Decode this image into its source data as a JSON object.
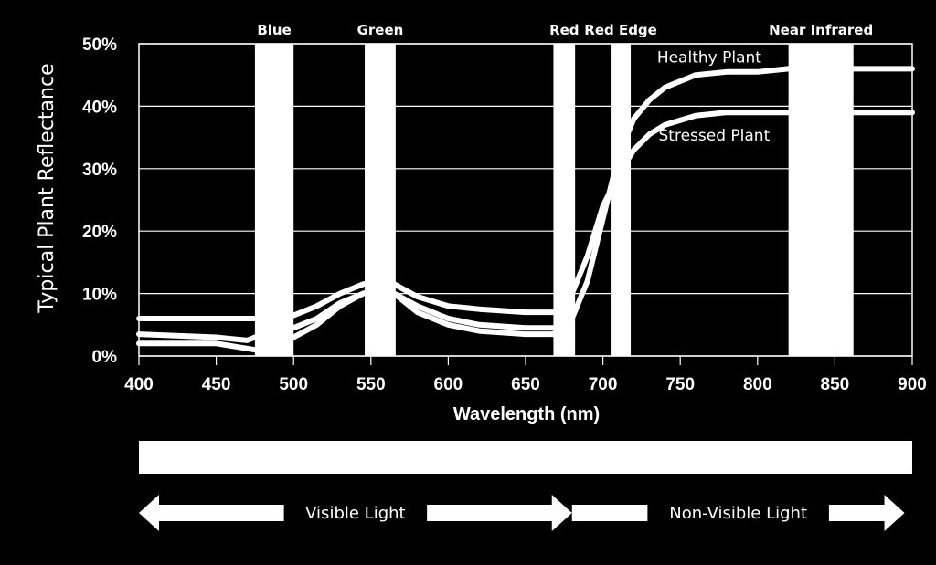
{
  "chart_data": {
    "type": "line",
    "title": "",
    "xlabel": "Wavelength (nm)",
    "ylabel": "Typical Plant Reflectance",
    "xlim": [
      400,
      900
    ],
    "ylim": [
      0,
      50
    ],
    "x_ticks": [
      "400",
      "450",
      "500",
      "550",
      "600",
      "650",
      "700",
      "750",
      "800",
      "850",
      "900"
    ],
    "y_ticks": [
      "0%",
      "10%",
      "20%",
      "30%",
      "40%",
      "50%"
    ],
    "grid": true,
    "bands": [
      {
        "label": "Blue",
        "x_start": 475,
        "x_end": 500
      },
      {
        "label": "Green",
        "x_start": 546,
        "x_end": 566
      },
      {
        "label": "Red",
        "x_start": 668,
        "x_end": 682
      },
      {
        "label": "Red Edge",
        "x_start": 705,
        "x_end": 718
      },
      {
        "label": "Near Infrared",
        "x_start": 820,
        "x_end": 862
      }
    ],
    "series": [
      {
        "name": "Healthy Plant",
        "label_at": [
          735,
          47
        ],
        "x": [
          400,
          450,
          475,
          490,
          500,
          515,
          530,
          545,
          555,
          565,
          580,
          600,
          620,
          650,
          668,
          680,
          690,
          700,
          710,
          720,
          730,
          740,
          750,
          760,
          780,
          800,
          820,
          850,
          900
        ],
        "y": [
          2,
          2,
          1,
          1,
          3,
          5,
          8,
          10,
          10.5,
          10,
          7,
          5,
          4,
          3.5,
          3.5,
          6,
          12,
          22,
          32,
          38,
          41,
          43,
          44,
          45,
          45.5,
          45.5,
          46,
          46,
          46
        ]
      },
      {
        "name": "Stressed Plant",
        "label_at": [
          736,
          34.5
        ],
        "x": [
          400,
          450,
          475,
          490,
          500,
          515,
          530,
          545,
          555,
          565,
          580,
          600,
          620,
          650,
          668,
          680,
          690,
          700,
          710,
          720,
          730,
          740,
          760,
          780,
          800,
          850,
          900
        ],
        "y": [
          6,
          6,
          6,
          6,
          6.5,
          8,
          10,
          11.5,
          12,
          11.5,
          9.5,
          8,
          7.5,
          7,
          7,
          10,
          16,
          24,
          29,
          33,
          35.5,
          37,
          38.5,
          39,
          39,
          39,
          39
        ]
      },
      {
        "name": "",
        "x": [
          400,
          450,
          470,
          480,
          490,
          500,
          515,
          530,
          545,
          555,
          565,
          580,
          600,
          620,
          650,
          668
        ],
        "y": [
          3.5,
          3,
          2.5,
          3.5,
          4,
          4.5,
          6,
          8.5,
          10,
          10.5,
          10,
          8,
          6,
          5,
          4.5,
          4.5
        ]
      }
    ],
    "spectrum_bar_label": "",
    "arrows": [
      {
        "label": "Visible Light",
        "x_start": 400,
        "x_end": 680
      },
      {
        "label": "Non-Visible Light",
        "x_start": 680,
        "x_end": 895
      }
    ]
  }
}
